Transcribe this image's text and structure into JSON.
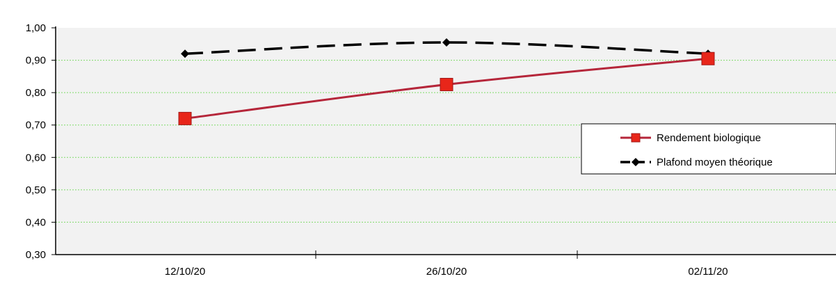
{
  "chart_data": {
    "type": "line",
    "categories": [
      "12/10/20",
      "26/10/20",
      "02/11/20"
    ],
    "y_tick_labels": [
      "1,00",
      "0,90",
      "0,80",
      "0,70",
      "0,60",
      "0,50",
      "0,40",
      "0,30"
    ],
    "ylim": [
      0.3,
      1.0
    ],
    "grid": true,
    "legend_position": "right",
    "series": [
      {
        "name": "Rendement biologique",
        "values": [
          0.72,
          0.825,
          0.905
        ],
        "color": "#b5263a",
        "marker": "square",
        "marker_color": "#e8261a",
        "line_style": "solid"
      },
      {
        "name": "Plafond moyen théorique",
        "values": [
          0.92,
          0.955,
          0.92
        ],
        "color": "#000000",
        "marker": "diamond",
        "line_style": "dashed"
      }
    ],
    "colors": {
      "plot_background": "#f2f2f2",
      "gridline": "#7fdc6a",
      "axis": "#000000"
    }
  }
}
